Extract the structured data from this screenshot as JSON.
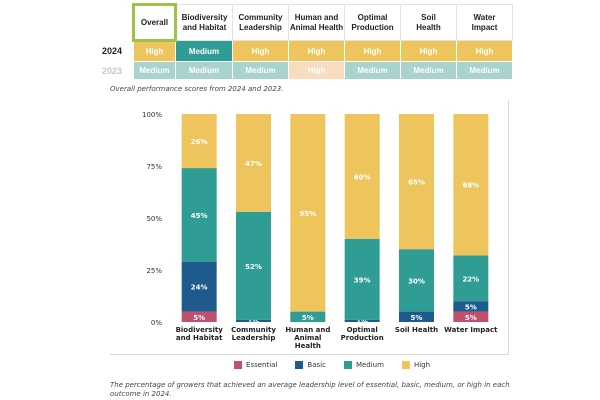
{
  "table": {
    "columns": [
      "Overall",
      "Biodiversity\nand Habitat",
      "Community\nLeadership",
      "Human and\nAnimal Health",
      "Optimal\nProduction",
      "Soil\nHealth",
      "Water\nImpact"
    ],
    "rows": [
      {
        "label": "2024",
        "values": [
          "High",
          "Medium",
          "High",
          "High",
          "High",
          "High",
          "High"
        ]
      },
      {
        "label": "2023",
        "values": [
          "Medium",
          "Medium",
          "Medium",
          "High",
          "Medium",
          "Medium",
          "Medium"
        ]
      }
    ]
  },
  "captions": {
    "top": "Overall performance scores from 2024 and 2023.",
    "bottom": "The percentage of growers that achieved an average leadership level of essential, basic, medium, or high in each outcome in 2024."
  },
  "colors": {
    "essential": "#c0506c",
    "basic": "#1f5a8c",
    "medium": "#2f9d94",
    "high": "#eec45c",
    "high_2023": "#f8dcc0",
    "medium_2023": "#a9d3cd"
  },
  "chart_data": {
    "type": "bar",
    "stacked": true,
    "orientation": "vertical",
    "categories": [
      "Biodiversity\nand Habitat",
      "Community\nLeadership",
      "Human and\nAnimal\nHealth",
      "Optimal\nProduction",
      "Soil Health",
      "Water Impact"
    ],
    "series": [
      {
        "name": "Essential",
        "values": [
          5,
          0,
          0,
          0,
          0,
          5
        ]
      },
      {
        "name": "Basic",
        "values": [
          24,
          1,
          0,
          1,
          5,
          5
        ]
      },
      {
        "name": "Medium",
        "values": [
          45,
          52,
          5,
          39,
          30,
          22
        ]
      },
      {
        "name": "High",
        "values": [
          26,
          47,
          95,
          60,
          65,
          68
        ]
      }
    ],
    "yticks": [
      "0%",
      "25%",
      "50%",
      "75%",
      "100%"
    ],
    "ylim": [
      0,
      100
    ],
    "legend_position": "bottom",
    "grid": false
  }
}
